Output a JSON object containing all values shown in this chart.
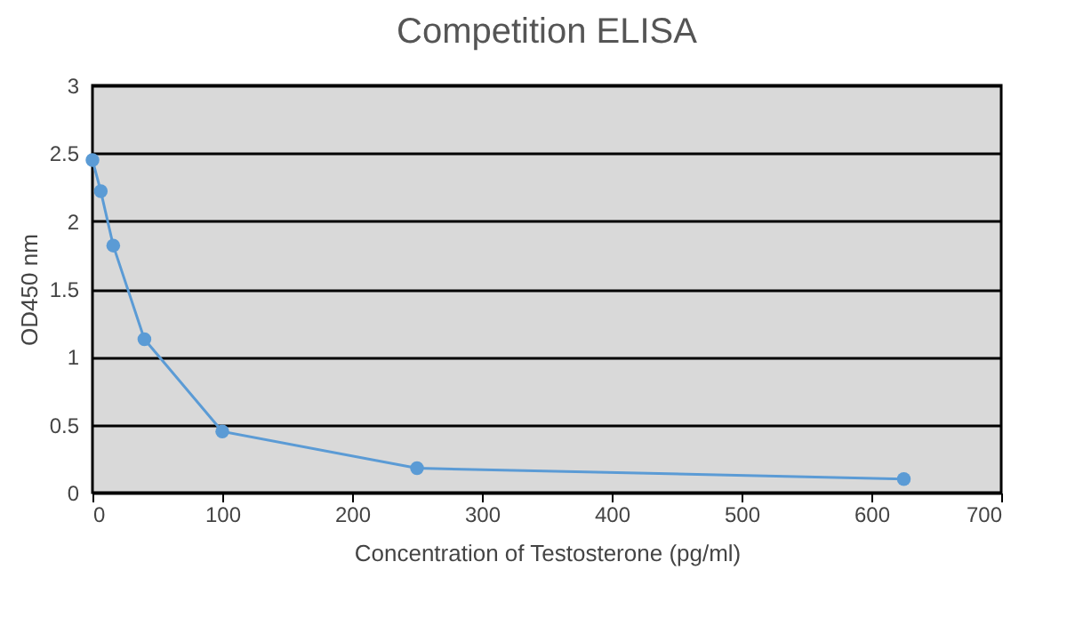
{
  "chart_data": {
    "type": "line",
    "title": "Competition ELISA",
    "xlabel": "Concentration of Testosterone (pg/ml)",
    "ylabel": "OD450 nm",
    "x": [
      0,
      6.4,
      16,
      40,
      100,
      250,
      625
    ],
    "series": [
      {
        "color": "#5b9bd5",
        "values": [
          2.45,
          2.22,
          1.82,
          1.13,
          0.45,
          0.18,
          0.1
        ]
      }
    ],
    "xlim": [
      0,
      700
    ],
    "xticks": [
      0,
      100,
      200,
      300,
      400,
      500,
      600,
      700
    ],
    "ylim": [
      0,
      3
    ],
    "yticks": [
      0,
      0.5,
      1,
      1.5,
      2,
      2.5,
      3
    ],
    "grid": "y",
    "legend": false,
    "marker": "circle",
    "line_style": "solid"
  }
}
